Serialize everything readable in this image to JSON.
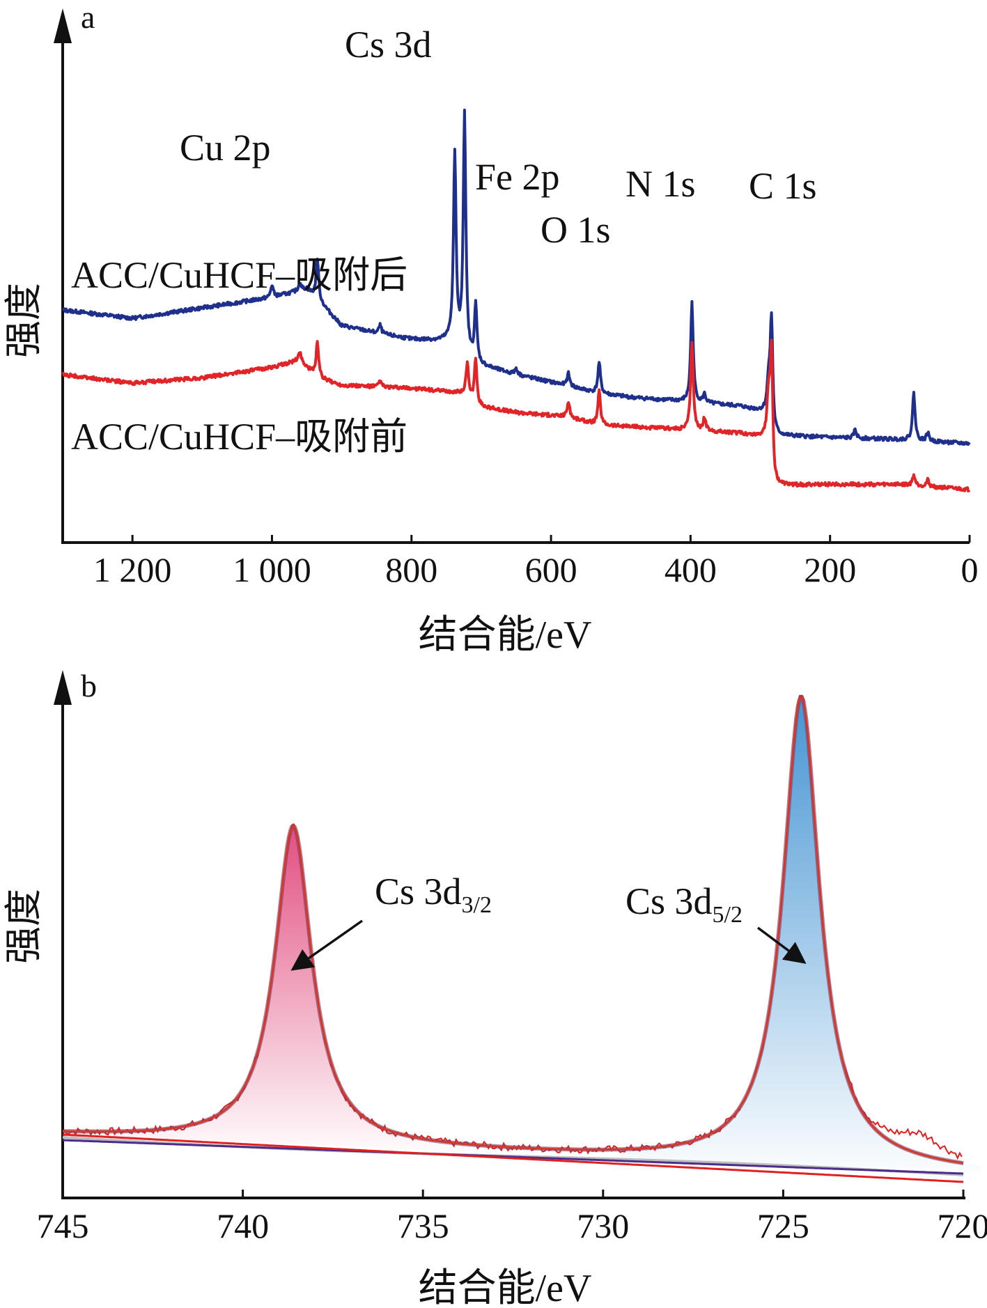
{
  "chart_data": [
    {
      "panel": "a",
      "type": "line",
      "xlabel": "结合能/eV",
      "ylabel": "强度",
      "xlim": [
        1300,
        0
      ],
      "xticks": [
        {
          "value": 1200,
          "label": "1 200"
        },
        {
          "value": 1000,
          "label": "1 000"
        },
        {
          "value": 800,
          "label": "800"
        },
        {
          "value": 600,
          "label": "600"
        },
        {
          "value": 400,
          "label": "400"
        },
        {
          "value": 200,
          "label": "200"
        },
        {
          "value": 0,
          "label": "0"
        }
      ],
      "peak_labels": [
        {
          "text": "Cu 2p",
          "x": 935
        },
        {
          "text": "Cs 3d",
          "x": 724
        },
        {
          "text": "Fe 2p",
          "x": 708
        },
        {
          "text": "O 1s",
          "x": 531
        },
        {
          "text": "N 1s",
          "x": 398
        },
        {
          "text": "C 1s",
          "x": 284
        }
      ],
      "series": [
        {
          "name": "ACC/CuHCF–吸附后",
          "color": "#1f2f8c",
          "baseline": [
            [
              1300,
              1.7
            ],
            [
              1200,
              1.62
            ],
            [
              1100,
              1.72
            ],
            [
              1000,
              1.82
            ],
            [
              950,
              1.9
            ],
            [
              935,
              1.8
            ],
            [
              900,
              1.55
            ],
            [
              850,
              1.48
            ],
            [
              800,
              1.42
            ],
            [
              740,
              1.4
            ],
            [
              710,
              1.18
            ],
            [
              650,
              1.08
            ],
            [
              580,
              0.98
            ],
            [
              531,
              0.9
            ],
            [
              480,
              0.86
            ],
            [
              400,
              0.82
            ],
            [
              330,
              0.78
            ],
            [
              290,
              0.72
            ],
            [
              280,
              0.5
            ],
            [
              200,
              0.48
            ],
            [
              100,
              0.46
            ],
            [
              0,
              0.42
            ]
          ],
          "peaks": [
            [
              1000,
              0.12
            ],
            [
              960,
              0.08
            ],
            [
              935,
              0.4
            ],
            [
              845,
              0.08
            ],
            [
              738,
              1.8
            ],
            [
              724,
              2.28
            ],
            [
              708,
              0.55
            ],
            [
              650,
              0.06
            ],
            [
              575,
              0.12
            ],
            [
              531,
              0.3
            ],
            [
              398,
              0.95
            ],
            [
              380,
              0.08
            ],
            [
              288,
              0.3
            ],
            [
              284,
              1.02
            ],
            [
              164,
              0.08
            ],
            [
              80,
              0.45
            ],
            [
              60,
              0.08
            ]
          ]
        },
        {
          "name": "ACC/CuHCF–吸附前",
          "color": "#e02428",
          "baseline": [
            [
              1300,
              1.08
            ],
            [
              1200,
              1.0
            ],
            [
              1100,
              1.05
            ],
            [
              1000,
              1.15
            ],
            [
              960,
              1.22
            ],
            [
              935,
              1.05
            ],
            [
              900,
              0.98
            ],
            [
              800,
              0.95
            ],
            [
              720,
              0.9
            ],
            [
              708,
              0.78
            ],
            [
              650,
              0.72
            ],
            [
              580,
              0.68
            ],
            [
              531,
              0.6
            ],
            [
              480,
              0.58
            ],
            [
              400,
              0.55
            ],
            [
              330,
              0.52
            ],
            [
              290,
              0.48
            ],
            [
              280,
              0.02
            ],
            [
              200,
              0.03
            ],
            [
              100,
              0.03
            ],
            [
              0,
              -0.02
            ]
          ],
          "peaks": [
            [
              960,
              0.08
            ],
            [
              935,
              0.35
            ],
            [
              845,
              0.06
            ],
            [
              720,
              0.28
            ],
            [
              708,
              0.45
            ],
            [
              575,
              0.15
            ],
            [
              531,
              0.32
            ],
            [
              398,
              0.85
            ],
            [
              380,
              0.12
            ],
            [
              288,
              0.42
            ],
            [
              284,
              1.1
            ],
            [
              80,
              0.1
            ],
            [
              60,
              0.06
            ]
          ]
        }
      ]
    },
    {
      "panel": "b",
      "type": "line",
      "xlabel": "结合能/eV",
      "ylabel": "强度",
      "xlim": [
        745,
        720
      ],
      "xticks": [
        745,
        740,
        735,
        730,
        725,
        720
      ],
      "annotations": [
        {
          "main": "Cs 3d",
          "sub": "3/2",
          "peak_x": 738.6
        },
        {
          "main": "Cs 3d",
          "sub": "5/2",
          "peak_x": 724.5
        }
      ],
      "peaks": [
        {
          "name": "Cs 3d3/2",
          "center": 738.6,
          "height": 0.76,
          "fill": "#e0457a"
        },
        {
          "name": "Cs 3d5/2",
          "center": 724.5,
          "height": 1.12,
          "fill": "#3c8fd1"
        }
      ],
      "background": {
        "start": 0.06,
        "end": -0.03
      },
      "colors": {
        "envelope": "#d03a2a",
        "raw": "#e02020",
        "bg_purple": "#4b2c8a",
        "bg_grey": "#bdbdbd"
      }
    }
  ]
}
